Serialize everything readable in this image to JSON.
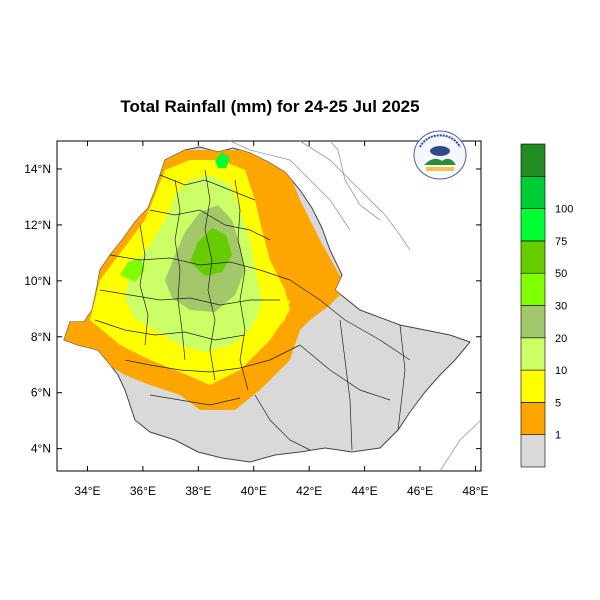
{
  "map": {
    "title": "Total Rainfall (mm) for 24-25 Jul 2025",
    "lon_range": [
      32.9,
      48.2
    ],
    "lat_range": [
      3.2,
      15.0
    ],
    "x_ticks": [
      {
        "value": 34,
        "label": "34°E"
      },
      {
        "value": 36,
        "label": "36°E"
      },
      {
        "value": 38,
        "label": "38°E"
      },
      {
        "value": 40,
        "label": "40°E"
      },
      {
        "value": 42,
        "label": "42°E"
      },
      {
        "value": 44,
        "label": "44°E"
      },
      {
        "value": 46,
        "label": "46°E"
      },
      {
        "value": 48,
        "label": "48°E"
      }
    ],
    "y_ticks": [
      {
        "value": 14,
        "label": "14°N"
      },
      {
        "value": 12,
        "label": "12°N"
      },
      {
        "value": 10,
        "label": "10°N"
      },
      {
        "value": 8,
        "label": "8°N"
      },
      {
        "value": 6,
        "label": "6°N"
      },
      {
        "value": 4,
        "label": "4°N"
      }
    ],
    "logo_icon": "ethiopian-meteorology-institute-logo"
  },
  "legend": {
    "units": "mm",
    "classes": [
      {
        "color": "#d9d9d9"
      },
      {
        "color": "#ffa500"
      },
      {
        "color": "#ffff00"
      },
      {
        "color": "#ccff66"
      },
      {
        "color": "#a2c86a"
      },
      {
        "color": "#7fff00"
      },
      {
        "color": "#66cc00"
      },
      {
        "color": "#00ff33"
      },
      {
        "color": "#00cc33"
      },
      {
        "color": "#228b22"
      }
    ],
    "thresholds": [
      "1",
      "5",
      "10",
      "20",
      "30",
      "50",
      "75",
      "100"
    ]
  }
}
